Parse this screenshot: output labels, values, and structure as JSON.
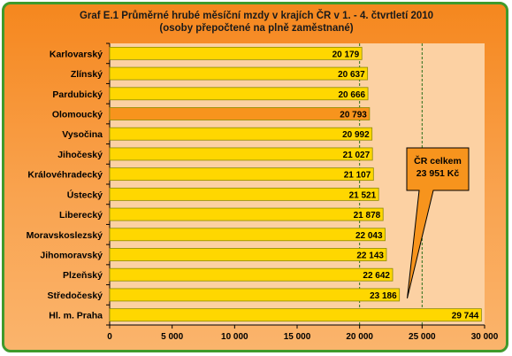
{
  "colors": {
    "frame_border": "#3f9a2c",
    "bar_fill": "#ffd700",
    "bar_stroke": "#8c8c00",
    "highlight_fill": "#f7941d",
    "plot_bg": "#fcd1a3",
    "average_line": "#2a6e18",
    "callout_fill": "#f7941d"
  },
  "chart_data": {
    "type": "bar",
    "orientation": "horizontal",
    "title": "Graf E.1 Průměrné hrubé měsíční mzdy v krajích ČR v 1. - 4. čtvrtletí 2010",
    "subtitle": "(osoby přepočtené na plně zaměstnané)",
    "categories": [
      "Karlovarský",
      "Zlínský",
      "Pardubický",
      "Olomoucký",
      "Vysočina",
      "Jihočeský",
      "Královéhradecký",
      "Ústecký",
      "Liberecký",
      "Moravskoslezský",
      "Jihomoravský",
      "Plzeňský",
      "Středočeský",
      "Hl. m. Praha"
    ],
    "values": [
      20179,
      20637,
      20666,
      20793,
      20992,
      21027,
      21107,
      21521,
      21878,
      22043,
      22143,
      22642,
      23186,
      29744
    ],
    "value_labels": [
      "20 179",
      "20 637",
      "20 666",
      "20 793",
      "20 992",
      "21 027",
      "21 107",
      "21 521",
      "21 878",
      "22 043",
      "22 143",
      "22 642",
      "23 186",
      "29 744"
    ],
    "highlighted_category": "Olomoucký",
    "xlim": [
      0,
      30000
    ],
    "x_ticks": [
      0,
      5000,
      10000,
      15000,
      20000,
      25000,
      30000
    ],
    "x_tick_labels": [
      "0",
      "5 000",
      "10 000",
      "15 000",
      "20 000",
      "25 000",
      "30 000"
    ],
    "reference_line": {
      "value": 23951,
      "label_line1": "ČR celkem",
      "label_line2": "23 951 Kč"
    },
    "gridlines": "dashed at 20 000 and 25 000",
    "legend": "none"
  }
}
